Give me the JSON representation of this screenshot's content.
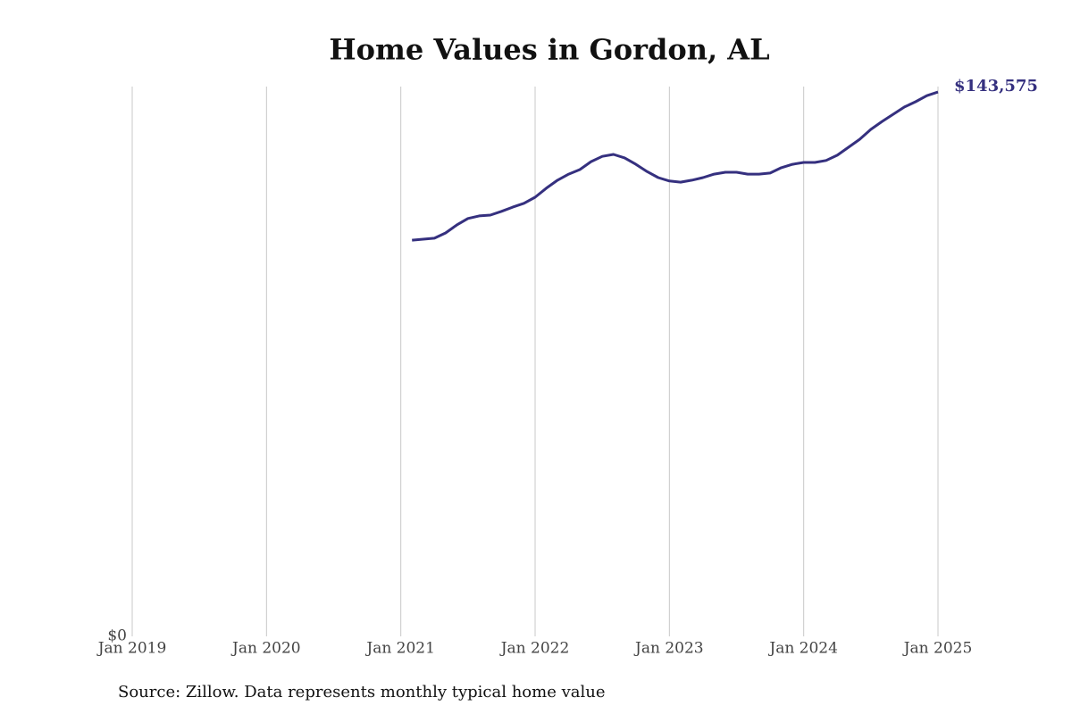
{
  "chart_data": {
    "type": "line",
    "title": "Home Values in Gordon, AL",
    "source": "Source: Zillow. Data represents monthly typical home value",
    "x": [
      "2021-02",
      "2021-03",
      "2021-04",
      "2021-05",
      "2021-06",
      "2021-07",
      "2021-08",
      "2021-09",
      "2021-10",
      "2021-11",
      "2021-12",
      "2022-01",
      "2022-02",
      "2022-03",
      "2022-04",
      "2022-05",
      "2022-06",
      "2022-07",
      "2022-08",
      "2022-09",
      "2022-10",
      "2022-11",
      "2022-12",
      "2023-01",
      "2023-02",
      "2023-03",
      "2023-04",
      "2023-05",
      "2023-06",
      "2023-07",
      "2023-08",
      "2023-09",
      "2023-10",
      "2023-11",
      "2023-12",
      "2024-01",
      "2024-02",
      "2024-03",
      "2024-04",
      "2024-05",
      "2024-06",
      "2024-07",
      "2024-08",
      "2024-09",
      "2024-10",
      "2024-11",
      "2024-12",
      "2025-01"
    ],
    "series": [
      {
        "name": "Gordon, AL",
        "color": "#35307f",
        "values": [
          104500,
          104750,
          105000,
          106400,
          108500,
          110200,
          110900,
          111100,
          112100,
          113200,
          114200,
          115800,
          118200,
          120300,
          121900,
          123100,
          125200,
          126600,
          127100,
          126200,
          124500,
          122600,
          121000,
          120100,
          119800,
          120300,
          121000,
          121900,
          122400,
          122400,
          121900,
          121900,
          122200,
          123600,
          124500,
          125000,
          125000,
          125500,
          126900,
          129000,
          131100,
          133700,
          135800,
          137700,
          139600,
          141000,
          142600,
          143575
        ],
        "value_labels": [
          null,
          null,
          null,
          null,
          null,
          null,
          null,
          null,
          null,
          null,
          null,
          null,
          null,
          null,
          null,
          null,
          null,
          null,
          null,
          null,
          null,
          null,
          null,
          null,
          null,
          null,
          null,
          null,
          null,
          null,
          null,
          null,
          null,
          null,
          null,
          null,
          null,
          null,
          null,
          null,
          null,
          null,
          null,
          null,
          null,
          null,
          null,
          "$143,575"
        ]
      }
    ],
    "xlim": [
      "2019-01",
      "2025-01"
    ],
    "xticks": [
      {
        "value": "2019-01",
        "label": "Jan 2019"
      },
      {
        "value": "2020-01",
        "label": "Jan 2020"
      },
      {
        "value": "2021-01",
        "label": "Jan 2021"
      },
      {
        "value": "2022-01",
        "label": "Jan 2022"
      },
      {
        "value": "2023-01",
        "label": "Jan 2023"
      },
      {
        "value": "2024-01",
        "label": "Jan 2024"
      },
      {
        "value": "2025-01",
        "label": "Jan 2025"
      }
    ],
    "ylim": [
      0,
      145000
    ],
    "yticks": [
      {
        "value": 0,
        "label": "$0"
      }
    ],
    "grid": true
  }
}
